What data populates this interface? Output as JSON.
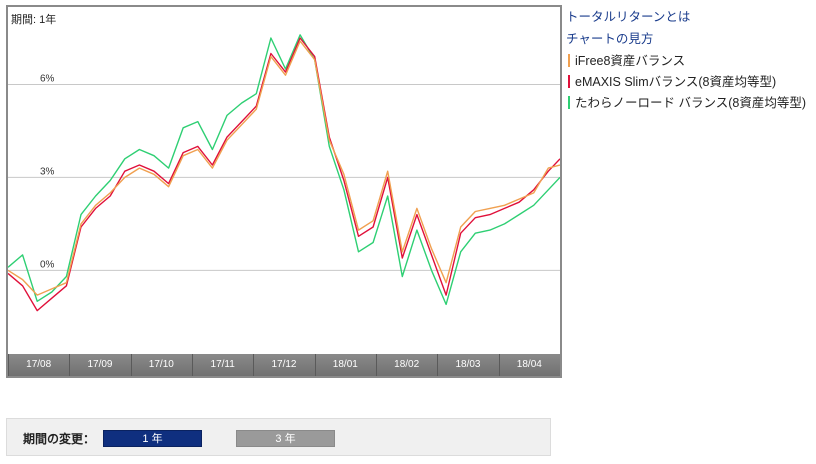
{
  "chart_header": {
    "period_label": "期間: 1年"
  },
  "links": [
    {
      "label": "トータルリターンとは"
    },
    {
      "label": "チャートの見方"
    }
  ],
  "legend": [
    {
      "label": "iFree8資産バランス",
      "color": "#f0a050"
    },
    {
      "label": "eMAXIS Slimバランス(8資産均等型)",
      "color": "#e0103a"
    },
    {
      "label": "たわらノーロード バランス(8資産均等型)",
      "color": "#2ecf73"
    }
  ],
  "period_change": {
    "label": "期間の変更：",
    "options": [
      {
        "label": "1 年",
        "active": true
      },
      {
        "label": "3 年",
        "active": false
      }
    ]
  },
  "chart_data": {
    "type": "line",
    "ylabel": "",
    "ylim": [
      -2.7,
      8.5
    ],
    "y_ticks": [
      0,
      3,
      6
    ],
    "y_tick_labels": [
      "0%",
      "3%",
      "6%"
    ],
    "grid": "horizontal at 0%, 3%, 6%",
    "x_categories": [
      "17/08",
      "17/09",
      "17/10",
      "17/11",
      "17/12",
      "18/01",
      "18/02",
      "18/03",
      "18/04"
    ],
    "series": [
      {
        "name": "iFree8資産バランス",
        "color": "#f0a050",
        "points": [
          [
            0,
            0.0
          ],
          [
            5,
            -0.3
          ],
          [
            10,
            -0.8
          ],
          [
            15,
            -0.6
          ],
          [
            20,
            -0.4
          ],
          [
            25,
            1.5
          ],
          [
            30,
            2.1
          ],
          [
            35,
            2.5
          ],
          [
            40,
            3.0
          ],
          [
            45,
            3.3
          ],
          [
            50,
            3.1
          ],
          [
            55,
            2.7
          ],
          [
            60,
            3.7
          ],
          [
            65,
            3.9
          ],
          [
            70,
            3.3
          ],
          [
            75,
            4.2
          ],
          [
            80,
            4.7
          ],
          [
            85,
            5.2
          ],
          [
            90,
            6.9
          ],
          [
            95,
            6.3
          ],
          [
            100,
            7.4
          ],
          [
            105,
            6.8
          ],
          [
            110,
            4.2
          ],
          [
            115,
            3.1
          ],
          [
            120,
            1.3
          ],
          [
            125,
            1.6
          ],
          [
            130,
            3.2
          ],
          [
            135,
            0.6
          ],
          [
            140,
            2.0
          ],
          [
            145,
            0.7
          ],
          [
            150,
            -0.4
          ],
          [
            155,
            1.4
          ],
          [
            160,
            1.9
          ],
          [
            165,
            2.0
          ],
          [
            170,
            2.1
          ],
          [
            175,
            2.3
          ],
          [
            180,
            2.5
          ],
          [
            185,
            3.3
          ],
          [
            189,
            3.4
          ]
        ]
      },
      {
        "name": "eMAXIS Slimバランス(8資産均等型)",
        "color": "#e0103a",
        "points": [
          [
            0,
            -0.1
          ],
          [
            5,
            -0.5
          ],
          [
            10,
            -1.3
          ],
          [
            15,
            -0.9
          ],
          [
            20,
            -0.5
          ],
          [
            25,
            1.4
          ],
          [
            30,
            2.0
          ],
          [
            35,
            2.4
          ],
          [
            40,
            3.2
          ],
          [
            45,
            3.4
          ],
          [
            50,
            3.2
          ],
          [
            55,
            2.8
          ],
          [
            60,
            3.8
          ],
          [
            65,
            4.0
          ],
          [
            70,
            3.4
          ],
          [
            75,
            4.3
          ],
          [
            80,
            4.8
          ],
          [
            85,
            5.3
          ],
          [
            90,
            7.0
          ],
          [
            95,
            6.4
          ],
          [
            100,
            7.5
          ],
          [
            105,
            6.9
          ],
          [
            110,
            4.3
          ],
          [
            115,
            2.9
          ],
          [
            120,
            1.1
          ],
          [
            125,
            1.4
          ],
          [
            130,
            3.0
          ],
          [
            135,
            0.4
          ],
          [
            140,
            1.8
          ],
          [
            145,
            0.5
          ],
          [
            150,
            -0.8
          ],
          [
            155,
            1.2
          ],
          [
            160,
            1.7
          ],
          [
            165,
            1.8
          ],
          [
            170,
            2.0
          ],
          [
            175,
            2.2
          ],
          [
            180,
            2.6
          ],
          [
            185,
            3.2
          ],
          [
            189,
            3.6
          ]
        ]
      },
      {
        "name": "たわらノーロード バランス(8資産均等型)",
        "color": "#2ecf73",
        "points": [
          [
            0,
            0.1
          ],
          [
            5,
            0.5
          ],
          [
            10,
            -1.0
          ],
          [
            15,
            -0.7
          ],
          [
            20,
            -0.2
          ],
          [
            25,
            1.8
          ],
          [
            30,
            2.4
          ],
          [
            35,
            2.9
          ],
          [
            40,
            3.6
          ],
          [
            45,
            3.9
          ],
          [
            50,
            3.7
          ],
          [
            55,
            3.3
          ],
          [
            60,
            4.6
          ],
          [
            65,
            4.8
          ],
          [
            70,
            3.9
          ],
          [
            75,
            5.0
          ],
          [
            80,
            5.4
          ],
          [
            85,
            5.7
          ],
          [
            90,
            7.5
          ],
          [
            95,
            6.5
          ],
          [
            100,
            7.6
          ],
          [
            105,
            6.8
          ],
          [
            110,
            4.0
          ],
          [
            115,
            2.6
          ],
          [
            120,
            0.6
          ],
          [
            125,
            0.9
          ],
          [
            130,
            2.4
          ],
          [
            135,
            -0.2
          ],
          [
            140,
            1.3
          ],
          [
            145,
            0.0
          ],
          [
            150,
            -1.1
          ],
          [
            155,
            0.6
          ],
          [
            160,
            1.2
          ],
          [
            165,
            1.3
          ],
          [
            170,
            1.5
          ],
          [
            175,
            1.8
          ],
          [
            180,
            2.1
          ],
          [
            185,
            2.6
          ],
          [
            189,
            3.0
          ]
        ]
      }
    ]
  }
}
